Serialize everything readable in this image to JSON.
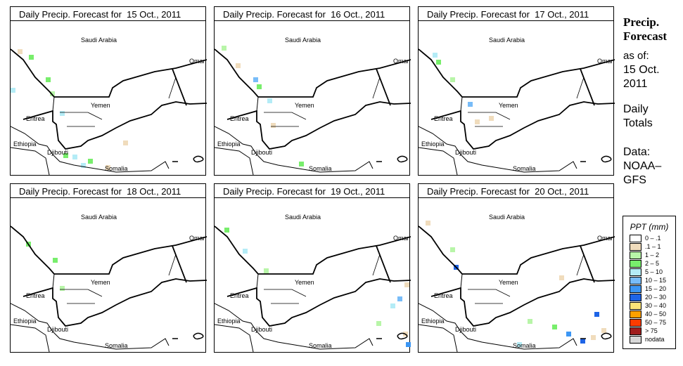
{
  "panels": [
    {
      "title": "Daily Precip. Forecast for  15 Oct., 2011"
    },
    {
      "title": "Daily Precip. Forecast for  16 Oct., 2011"
    },
    {
      "title": "Daily Precip. Forecast for  17 Oct., 2011"
    },
    {
      "title": "Daily Precip. Forecast for  18 Oct., 2011"
    },
    {
      "title": "Daily Precip. Forecast for  19 Oct., 2011"
    },
    {
      "title": "Daily Precip. Forecast for  20 Oct., 2011"
    }
  ],
  "countries": {
    "saudi": "Saudi Arabia",
    "oman": "Oman",
    "yemen": "Yemen",
    "eritrea": "Eritrea",
    "ethiopia": "Ethiopia",
    "djibouti": "Djibouti",
    "somalia": "Somalia"
  },
  "side": {
    "title1": "Precip.",
    "title2": "Forecast",
    "asof": "as of:",
    "date1": "15 Oct.",
    "date2": "2011",
    "totals1": "Daily",
    "totals2": "Totals",
    "data1": "Data:",
    "data2": "NOAA–",
    "data3": "GFS"
  },
  "legend": {
    "title": "PPT (mm)",
    "items": [
      {
        "label": "0 – .1",
        "color": "#ffffff"
      },
      {
        "label": ".1 – 1",
        "color": "#f0dcbc"
      },
      {
        "label": "1 – 2",
        "color": "#b8f5a8"
      },
      {
        "label": "2 – 5",
        "color": "#78ee6c"
      },
      {
        "label": "5 – 10",
        "color": "#b4ecf6"
      },
      {
        "label": "10 – 15",
        "color": "#78bcf8"
      },
      {
        "label": "15 – 20",
        "color": "#3c96f4"
      },
      {
        "label": "20 – 30",
        "color": "#1e64e6"
      },
      {
        "label": "30 – 40",
        "color": "#fce478"
      },
      {
        "label": "40 – 50",
        "color": "#fca000"
      },
      {
        "label": "50 – 75",
        "color": "#fc3c00"
      },
      {
        "label": "> 75",
        "color": "#a01e1e"
      },
      {
        "label": "nodata",
        "color": "#d8d8d8"
      }
    ]
  }
}
